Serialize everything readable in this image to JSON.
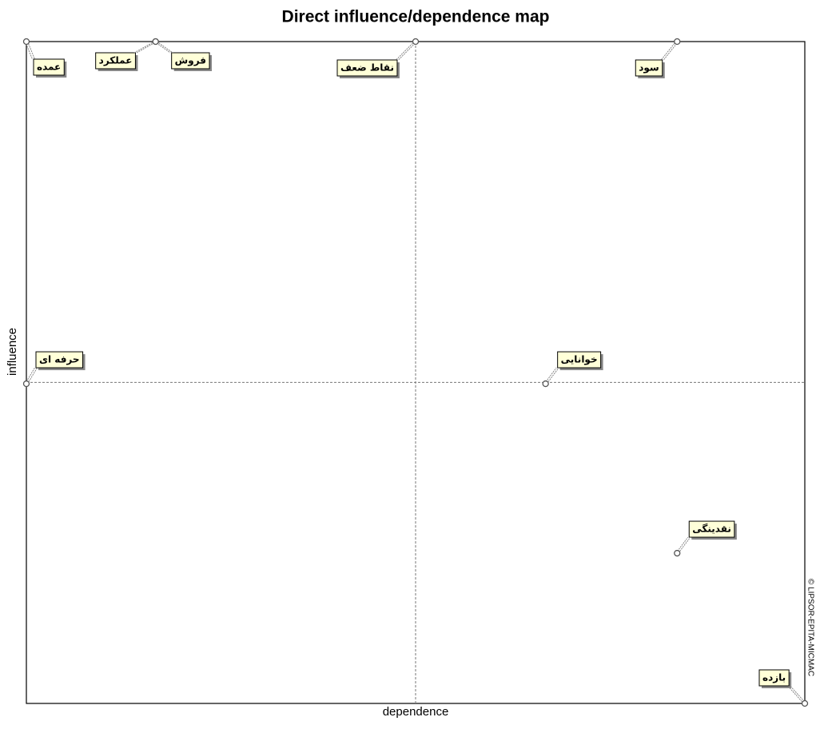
{
  "chart_data": {
    "type": "scatter",
    "title": "Direct influence/dependence map",
    "x_label": "dependence",
    "y_label": "influence",
    "watermark": "© LIPSOR-EPITA-MICMAC",
    "labels": [
      "عمده",
      "عملکرد",
      "فروش",
      "نقاط ضعف",
      "سود",
      "حرفه ای",
      "خوانایی",
      "نقدینگی",
      "بازده"
    ],
    "x": [
      0,
      16.6,
      16.6,
      50,
      83.6,
      0,
      66.7,
      83.6,
      100
    ],
    "values": [
      100,
      100,
      100,
      100,
      100,
      48.3,
      48.3,
      22.7,
      0
    ],
    "xlim": [
      0,
      100
    ],
    "ylim": [
      0,
      100
    ],
    "x_reference": 50,
    "y_reference": 48.5
  }
}
